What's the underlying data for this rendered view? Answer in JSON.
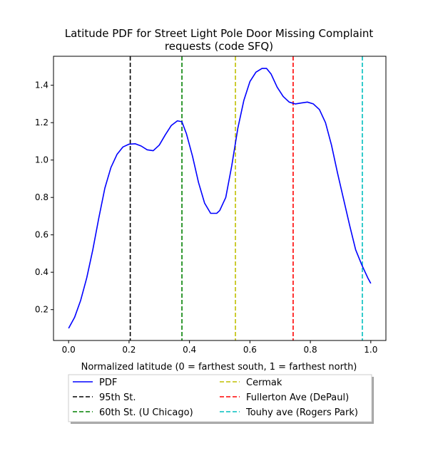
{
  "chart_data": {
    "type": "line",
    "title_line1": "Latitude PDF for Street Light Pole Door Missing Complaint",
    "title_line2": "requests (code SFQ)",
    "xlabel": "Normalized latitude (0 = farthest south, 1 = farthest north)",
    "ylabel": "",
    "xlim": [
      -0.05,
      1.05
    ],
    "ylim": [
      0.035,
      1.555
    ],
    "xticks": [
      0.0,
      0.2,
      0.4,
      0.6,
      0.8,
      1.0
    ],
    "xtick_labels": [
      "0.0",
      "0.2",
      "0.4",
      "0.6",
      "0.8",
      "1.0"
    ],
    "yticks": [
      0.2,
      0.4,
      0.6,
      0.8,
      1.0,
      1.2,
      1.4
    ],
    "ytick_labels": [
      "0.2",
      "0.4",
      "0.6",
      "0.8",
      "1.0",
      "1.2",
      "1.4"
    ],
    "series": [
      {
        "name": "PDF",
        "color": "#0000ff",
        "x": [
          0.0,
          0.02,
          0.04,
          0.06,
          0.08,
          0.1,
          0.12,
          0.14,
          0.16,
          0.18,
          0.2,
          0.22,
          0.24,
          0.26,
          0.28,
          0.3,
          0.32,
          0.34,
          0.36,
          0.375,
          0.39,
          0.41,
          0.43,
          0.45,
          0.47,
          0.49,
          0.5,
          0.52,
          0.54,
          0.56,
          0.58,
          0.6,
          0.62,
          0.64,
          0.655,
          0.67,
          0.69,
          0.71,
          0.73,
          0.75,
          0.77,
          0.79,
          0.81,
          0.83,
          0.85,
          0.87,
          0.89,
          0.91,
          0.93,
          0.95,
          0.97,
          0.99,
          1.0
        ],
        "y": [
          0.1,
          0.16,
          0.25,
          0.37,
          0.52,
          0.69,
          0.85,
          0.96,
          1.03,
          1.07,
          1.085,
          1.087,
          1.075,
          1.055,
          1.05,
          1.08,
          1.135,
          1.185,
          1.21,
          1.205,
          1.14,
          1.02,
          0.88,
          0.77,
          0.715,
          0.715,
          0.73,
          0.8,
          0.97,
          1.17,
          1.32,
          1.42,
          1.47,
          1.49,
          1.49,
          1.46,
          1.39,
          1.34,
          1.31,
          1.3,
          1.305,
          1.31,
          1.3,
          1.27,
          1.2,
          1.08,
          0.93,
          0.79,
          0.65,
          0.52,
          0.44,
          0.37,
          0.34
        ]
      }
    ],
    "vlines": [
      {
        "name": "95th St.",
        "x": 0.204,
        "color": "#000000"
      },
      {
        "name": "60th St. (U Chicago)",
        "x": 0.375,
        "color": "#008000"
      },
      {
        "name": "Cermak",
        "x": 0.552,
        "color": "#bfbf00"
      },
      {
        "name": "Fullerton Ave (DePaul)",
        "x": 0.743,
        "color": "#ff0000"
      },
      {
        "name": "Touhy ave (Rogers Park)",
        "x": 0.972,
        "color": "#00bfbf"
      }
    ],
    "legend": {
      "placement": "below",
      "columns": 2,
      "entries": [
        {
          "label": "PDF",
          "color": "#0000ff",
          "style": "solid"
        },
        {
          "label": "95th St.",
          "color": "#000000",
          "style": "dashed"
        },
        {
          "label": "60th St. (U Chicago)",
          "color": "#008000",
          "style": "dashed"
        },
        {
          "label": "Cermak",
          "color": "#bfbf00",
          "style": "dashed"
        },
        {
          "label": "Fullerton Ave (DePaul)",
          "color": "#ff0000",
          "style": "dashed"
        },
        {
          "label": "Touhy ave (Rogers Park)",
          "color": "#00bfbf",
          "style": "dashed"
        }
      ]
    },
    "grid": false
  }
}
